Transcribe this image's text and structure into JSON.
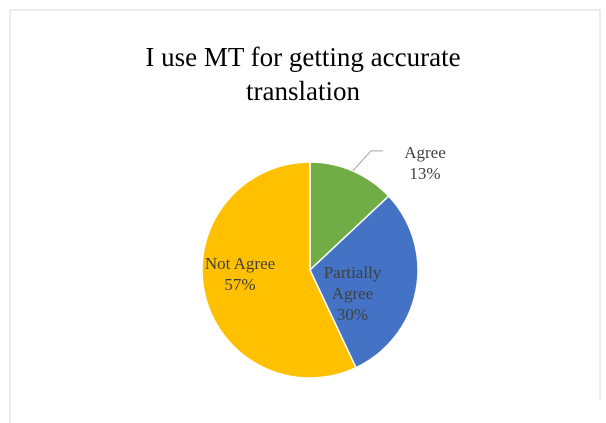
{
  "chart_data": {
    "type": "pie",
    "title": "I use MT for getting accurate translation",
    "categories": [
      "Agree",
      "Partially Agree",
      "Not Agree"
    ],
    "values": [
      13,
      30,
      57
    ],
    "value_labels": [
      "13%",
      "30%",
      "57%"
    ],
    "colors": [
      "#70ad47",
      "#4472c4",
      "#ffc000"
    ]
  }
}
